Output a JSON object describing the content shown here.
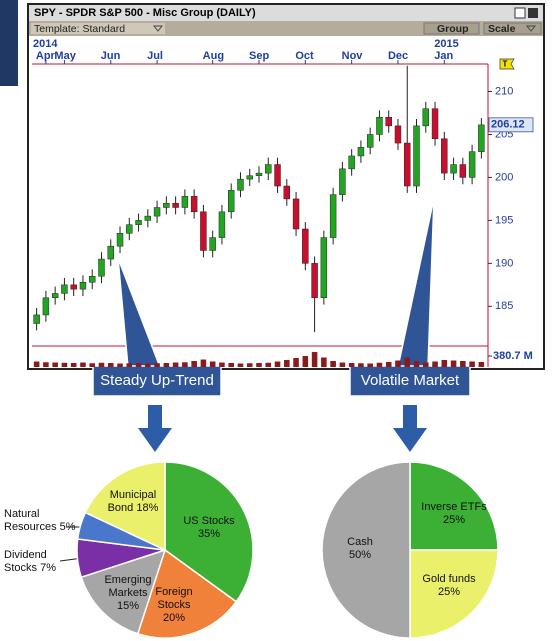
{
  "window": {
    "title": "SPY - SPDR S&P 500 - Misc Group (DAILY)",
    "template": "Template: Standard",
    "group_button": "Group",
    "scale_button": "Scale",
    "flag": "T"
  },
  "callouts": [
    "Steady Up-Trend",
    "Volatile Market"
  ],
  "chart_data": [
    {
      "type": "candlestick",
      "open": [
        183,
        184,
        186,
        186.5,
        187.5,
        187,
        187.8,
        188.5,
        190.5,
        192,
        193.5,
        194.5,
        195,
        195.5,
        196.5,
        197,
        196.5,
        197.8,
        196,
        191.5,
        193,
        196,
        198.5,
        199.8,
        200.2,
        200.5,
        201.5,
        199,
        197.5,
        194,
        190,
        186,
        193,
        198,
        201,
        202.5,
        203.5,
        205,
        207,
        206,
        204,
        199,
        206,
        208,
        204.5,
        200.5,
        201.5,
        200,
        203
      ],
      "high": [
        184.8,
        186.8,
        187.3,
        188.3,
        188.3,
        188.6,
        189.3,
        191.3,
        192.8,
        194.3,
        195.3,
        195.8,
        196.3,
        197.3,
        197.8,
        197.8,
        198.6,
        198.6,
        196.8,
        193.8,
        196.8,
        199.3,
        200.6,
        201,
        201.3,
        202.3,
        202.3,
        199.8,
        198.3,
        194.8,
        190.8,
        193.8,
        198.8,
        201.8,
        203.3,
        204.3,
        205.8,
        207.8,
        207.8,
        206.8,
        213,
        206.8,
        208.8,
        208.8,
        205.3,
        202.3,
        202.3,
        203.8,
        206.9
      ],
      "low": [
        182.2,
        183.2,
        185.2,
        185.7,
        186.2,
        186.2,
        187,
        187.7,
        189.7,
        191.2,
        192.7,
        193.7,
        194.2,
        194.7,
        195.7,
        195.7,
        195.7,
        195.2,
        190.7,
        190.7,
        192.2,
        195.2,
        197.7,
        199,
        199.4,
        199.7,
        198.2,
        196.7,
        193.2,
        189.2,
        182,
        185.2,
        192.2,
        197.2,
        200.2,
        201.7,
        202.7,
        204.2,
        205.2,
        203.2,
        198.2,
        198.2,
        205.2,
        203.7,
        199.7,
        199.7,
        199.2,
        199.2,
        202.2
      ],
      "close": [
        184,
        186,
        186.5,
        187.5,
        187,
        187.8,
        188.5,
        190.5,
        192,
        193.5,
        194.5,
        195,
        195.5,
        196.5,
        197,
        196.5,
        197.8,
        196,
        191.5,
        193,
        196,
        198.5,
        199.8,
        200.2,
        200.5,
        201.5,
        199,
        197.5,
        194,
        190,
        186,
        193,
        198,
        201,
        202.5,
        203.5,
        205,
        207,
        206,
        204,
        199,
        206,
        208,
        204.5,
        200.5,
        201.5,
        200,
        203,
        206.12
      ],
      "volume": [
        110,
        95,
        90,
        85,
        80,
        90,
        75,
        85,
        80,
        70,
        75,
        80,
        70,
        75,
        80,
        90,
        95,
        120,
        150,
        110,
        90,
        80,
        70,
        75,
        80,
        85,
        110,
        140,
        180,
        220,
        300,
        190,
        120,
        90,
        80,
        75,
        70,
        85,
        100,
        130,
        190,
        120,
        90,
        110,
        140,
        130,
        120,
        110,
        100
      ],
      "volume_lim": [
        0,
        380.7
      ],
      "volume_ticks": [
        {
          "value": 380.7,
          "label": "380.7 M"
        }
      ],
      "ylim": [
        180.5,
        213.2
      ],
      "yticks": [
        185,
        190,
        195,
        200,
        205,
        210
      ],
      "xticks": [
        {
          "value": 1,
          "label": "Apr"
        },
        {
          "value": 3,
          "label": "May"
        },
        {
          "value": 8,
          "label": "Jun"
        },
        {
          "value": 13,
          "label": "Jul"
        },
        {
          "value": 19,
          "label": "Aug"
        },
        {
          "value": 24,
          "label": "Sep"
        },
        {
          "value": 29,
          "label": "Oct"
        },
        {
          "value": 34,
          "label": "Nov"
        },
        {
          "value": 39,
          "label": "Dec"
        },
        {
          "value": 44,
          "label": "Jan"
        }
      ],
      "year_ticks": [
        {
          "value": 0,
          "label": "2014"
        },
        {
          "value": 44,
          "label": "2015"
        }
      ],
      "up_color": "#22a622",
      "down_color": "#c8102e"
    },
    {
      "type": "pie",
      "categories": [
        "US Stocks",
        "Foreign Stocks",
        "Emerging Markets",
        "Dividend Stocks",
        "Natural Resources",
        "Municipal Bond"
      ],
      "values": [
        35,
        20,
        15,
        7,
        5,
        18
      ],
      "value_labels": [
        "35%",
        "20%",
        "15%",
        "7%",
        "5%",
        "18%"
      ],
      "colors": [
        "#3cb034",
        "#f0813a",
        "#a6a6a6",
        "#7a2fa6",
        "#4a77cc",
        "#eaf06a"
      ]
    },
    {
      "type": "pie",
      "categories": [
        "Inverse ETFs",
        "Gold funds",
        "Cash"
      ],
      "values": [
        25,
        25,
        50
      ],
      "value_labels": [
        "25%",
        "25%",
        "50%"
      ],
      "colors": [
        "#3cb034",
        "#eaf06a",
        "#a6a6a6"
      ]
    }
  ]
}
